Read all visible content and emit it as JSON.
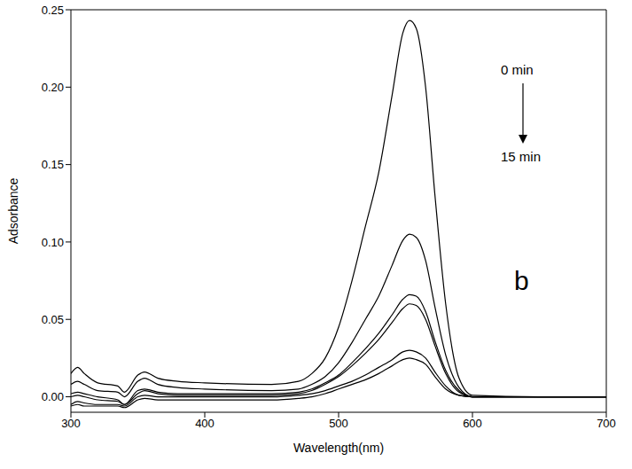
{
  "chart_data": {
    "type": "line",
    "x_label": "Wavelength(nm)",
    "y_label": "Adsorbance",
    "annotations": [
      "0 min",
      "15 min",
      "b"
    ],
    "xlim": [
      300,
      700
    ],
    "xticks": [
      300,
      400,
      500,
      600,
      700
    ],
    "ylim": [
      -0.01,
      0.25
    ],
    "yticks": [
      {
        "value": 0,
        "label": "0.00"
      },
      {
        "value": 0.05,
        "label": "0.05"
      },
      {
        "value": 0.1,
        "label": "0.10"
      },
      {
        "value": 0.15,
        "label": "0.15"
      },
      {
        "value": 0.2,
        "label": "0.20"
      },
      {
        "value": 0.25,
        "label": "0.25"
      }
    ],
    "grid": false,
    "color": "#000000",
    "x": [
      300,
      305,
      310,
      320,
      335,
      340,
      350,
      355,
      365,
      380,
      400,
      450,
      470,
      480,
      490,
      500,
      510,
      520,
      530,
      540,
      548,
      553,
      558,
      565,
      572,
      580,
      590,
      600,
      650,
      700
    ],
    "series": [
      {
        "values": [
          0.015,
          0.019,
          0.015,
          0.009,
          0.007,
          0.003,
          0.014,
          0.016,
          0.012,
          0.01,
          0.009,
          0.008,
          0.01,
          0.015,
          0.025,
          0.045,
          0.075,
          0.11,
          0.145,
          0.195,
          0.235,
          0.243,
          0.238,
          0.2,
          0.13,
          0.06,
          0.012,
          0.001,
          0,
          0
        ]
      },
      {
        "values": [
          0.008,
          0.01,
          0.008,
          0.004,
          0.003,
          0,
          0.01,
          0.012,
          0.008,
          0.006,
          0.005,
          0.004,
          0.005,
          0.008,
          0.013,
          0.022,
          0.035,
          0.05,
          0.065,
          0.085,
          0.101,
          0.105,
          0.103,
          0.088,
          0.058,
          0.027,
          0.006,
          0,
          0,
          0
        ]
      },
      {
        "values": [
          0.002,
          0.003,
          0.002,
          0,
          -0.002,
          -0.005,
          0.004,
          0.005,
          0.003,
          0.002,
          0.002,
          0.002,
          0.003,
          0.005,
          0.009,
          0.014,
          0.022,
          0.031,
          0.041,
          0.053,
          0.063,
          0.066,
          0.065,
          0.055,
          0.036,
          0.017,
          0.004,
          0,
          0,
          0
        ]
      },
      {
        "values": [
          0,
          0.001,
          0,
          -0.002,
          -0.003,
          -0.005,
          0.002,
          0.004,
          0.002,
          0.001,
          0.001,
          0.001,
          0.002,
          0.004,
          0.008,
          0.013,
          0.02,
          0.028,
          0.037,
          0.048,
          0.057,
          0.06,
          0.059,
          0.05,
          0.033,
          0.015,
          0.003,
          0,
          0,
          0
        ]
      },
      {
        "values": [
          -0.005,
          -0.003,
          -0.004,
          -0.005,
          -0.005,
          -0.006,
          0,
          0.001,
          0,
          0,
          0,
          0,
          0.001,
          0.002,
          0.004,
          0.007,
          0.01,
          0.014,
          0.019,
          0.024,
          0.029,
          0.03,
          0.029,
          0.025,
          0.016,
          0.007,
          0.001,
          0,
          0,
          0
        ]
      },
      {
        "values": [
          -0.006,
          -0.005,
          -0.006,
          -0.006,
          -0.006,
          -0.007,
          -0.002,
          -0.001,
          -0.002,
          -0.002,
          -0.002,
          -0.002,
          -0.001,
          0,
          0.002,
          0.005,
          0.008,
          0.011,
          0.015,
          0.02,
          0.024,
          0.025,
          0.024,
          0.021,
          0.013,
          0.005,
          0.001,
          0,
          0,
          0
        ]
      }
    ]
  }
}
